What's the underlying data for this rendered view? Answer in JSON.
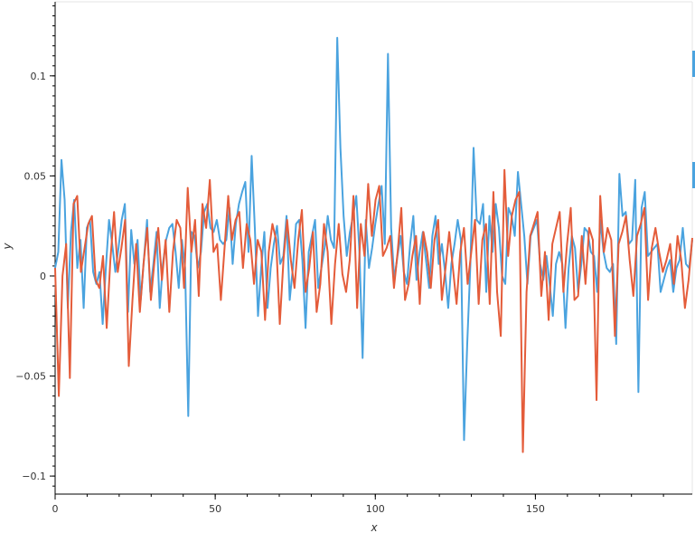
{
  "chart_data": {
    "type": "line",
    "title": "",
    "xlabel": "x",
    "ylabel": "y",
    "xlim": [
      0,
      199
    ],
    "ylim": [
      -0.109,
      0.137
    ],
    "x_ticks": [
      0,
      50,
      100,
      150
    ],
    "x_tick_labels": [
      "0",
      "50",
      "100",
      "150"
    ],
    "y_ticks": [
      -0.1,
      -0.05,
      0,
      0.05,
      0.1
    ],
    "y_tick_labels": [
      "−0.1",
      "−0.05",
      "0",
      "0.05",
      "0.1"
    ],
    "grid": false,
    "legend": "none",
    "series": [
      {
        "color": "#4aa3df",
        "values": [
          0.004,
          0.012,
          0.058,
          0.038,
          -0.016,
          0.022,
          0.038,
          0.004,
          0.018,
          -0.016,
          0.024,
          0.028,
          0.002,
          -0.004,
          0.002,
          -0.024,
          0.004,
          0.028,
          0.016,
          0.002,
          0.014,
          0.028,
          0.036,
          -0.018,
          0.023,
          0.006,
          0.018,
          -0.012,
          0.008,
          0.028,
          -0.008,
          0.006,
          0.022,
          -0.016,
          0.006,
          0.018,
          0.024,
          0.026,
          0.012,
          -0.006,
          0.018,
          0.004,
          -0.07,
          0.022,
          0.02,
          0.004,
          0.012,
          0.032,
          0.036,
          0.024,
          0.022,
          0.028,
          0.018,
          0.016,
          0.018,
          0.034,
          0.006,
          0.026,
          0.036,
          0.042,
          0.047,
          0.012,
          0.06,
          0.024,
          -0.02,
          0.004,
          0.022,
          -0.016,
          0.004,
          0.016,
          0.025,
          0.006,
          0.01,
          0.03,
          -0.012,
          0.004,
          0.026,
          0.028,
          0.008,
          -0.026,
          0.012,
          0.02,
          0.028,
          -0.006,
          0.004,
          0.014,
          0.03,
          0.018,
          0.014,
          0.119,
          0.064,
          0.03,
          0.01,
          0.022,
          0.03,
          0.04,
          0.012,
          -0.041,
          0.028,
          0.004,
          0.014,
          0.026,
          0.036,
          0.045,
          0.016,
          0.111,
          0.024,
          -0.002,
          0.01,
          0.02,
          0.002,
          -0.004,
          0.016,
          0.03,
          -0.002,
          0.012,
          0.022,
          0.008,
          -0.006,
          0.02,
          0.03,
          0.006,
          0.016,
          0.002,
          -0.016,
          0.006,
          0.016,
          0.028,
          0.018,
          -0.082,
          -0.034,
          0.006,
          0.064,
          0.028,
          0.026,
          0.036,
          -0.008,
          0.03,
          0.012,
          0.036,
          0.024,
          0.0,
          -0.004,
          0.034,
          0.03,
          0.02,
          0.052,
          0.036,
          0.02,
          -0.004,
          0.02,
          0.024,
          0.028,
          0.006,
          -0.002,
          0.01,
          -0.004,
          -0.02,
          0.006,
          0.012,
          0.006,
          -0.026,
          0.004,
          0.02,
          0.014,
          -0.008,
          0.006,
          0.024,
          0.022,
          0.012,
          0.01,
          -0.008,
          0.028,
          0.012,
          0.004,
          0.002,
          0.006,
          -0.034,
          0.051,
          0.03,
          0.032,
          0.016,
          0.018,
          0.048,
          -0.058,
          0.034,
          0.042,
          0.01,
          0.012,
          0.014,
          0.016,
          -0.008,
          -0.002,
          0.004,
          0.008,
          -0.008,
          0.004,
          0.008,
          0.024,
          0.006,
          0.004,
          0.018
        ]
      },
      {
        "color": "#e45c3a",
        "values": [
          0.004,
          -0.06,
          0.0,
          0.016,
          -0.051,
          0.036,
          0.04,
          0.002,
          0.014,
          0.026,
          0.03,
          -0.002,
          -0.006,
          0.01,
          -0.026,
          0.008,
          0.032,
          0.002,
          0.014,
          0.028,
          -0.045,
          -0.012,
          0.016,
          -0.018,
          0.006,
          0.024,
          -0.012,
          0.008,
          0.024,
          -0.002,
          0.018,
          -0.018,
          0.012,
          0.028,
          0.024,
          -0.006,
          0.044,
          0.012,
          0.028,
          -0.01,
          0.036,
          0.024,
          0.048,
          0.012,
          0.016,
          -0.012,
          0.014,
          0.04,
          0.018,
          0.028,
          0.032,
          0.004,
          0.026,
          0.018,
          -0.004,
          0.018,
          0.012,
          -0.022,
          0.012,
          0.026,
          0.018,
          -0.024,
          0.008,
          0.028,
          0.008,
          -0.006,
          0.018,
          0.033,
          -0.008,
          0.004,
          0.022,
          -0.018,
          -0.004,
          0.026,
          0.012,
          -0.024,
          0.006,
          0.026,
          0.001,
          -0.008,
          0.008,
          0.04,
          -0.016,
          0.026,
          0.01,
          0.046,
          0.02,
          0.038,
          0.045,
          0.01,
          0.014,
          0.02,
          -0.006,
          0.012,
          0.034,
          -0.012,
          -0.004,
          0.01,
          0.02,
          -0.014,
          0.022,
          0.012,
          -0.006,
          0.018,
          0.028,
          -0.012,
          0.004,
          0.022,
          0.004,
          -0.014,
          0.012,
          0.024,
          -0.004,
          0.012,
          0.028,
          -0.014,
          0.018,
          0.026,
          -0.014,
          0.042,
          -0.008,
          -0.03,
          0.053,
          0.01,
          0.03,
          0.038,
          0.042,
          -0.088,
          -0.008,
          0.02,
          0.026,
          0.032,
          -0.01,
          0.012,
          -0.022,
          0.016,
          0.024,
          0.032,
          -0.008,
          0.016,
          0.034,
          -0.012,
          -0.01,
          0.02,
          -0.004,
          0.024,
          0.018,
          -0.062,
          0.04,
          0.012,
          0.024,
          0.018,
          -0.03,
          0.016,
          0.022,
          0.03,
          0.008,
          -0.01,
          0.02,
          0.026,
          0.034,
          -0.012,
          0.014,
          0.024,
          0.012,
          0.002,
          0.008,
          0.016,
          -0.004,
          0.02,
          0.008,
          -0.016,
          -0.002,
          0.019
        ]
      }
    ]
  },
  "toolbar": {
    "indicators": [
      "",
      ""
    ]
  }
}
